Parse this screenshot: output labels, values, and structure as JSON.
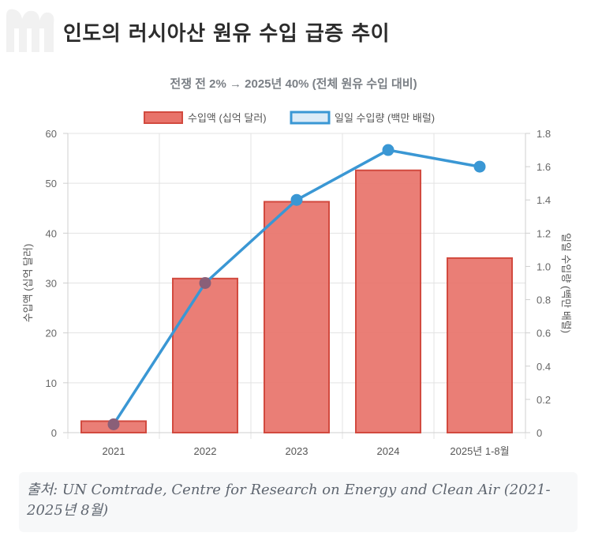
{
  "page": {
    "title": "인도의 러시아산 원유 수입 급증 추이",
    "source": "출처: UN Comtrade, Centre for Research on Energy and Clean Air (2021-2025년 8월)"
  },
  "chart_data": {
    "type": "bar+line",
    "title": "전쟁 전 2% → 2025년 40% (전체 원유 수입 대비)",
    "categories": [
      "2021",
      "2022",
      "2023",
      "2024",
      "2025년 1-8월"
    ],
    "series": [
      {
        "name": "수입액 (십억 달러)",
        "type": "bar",
        "axis": "left",
        "values": [
          2.3,
          30.9,
          46.3,
          52.6,
          35.0
        ],
        "color": "#e8736a",
        "border": "#d24a3f"
      },
      {
        "name": "일일 수입량 (백만 배럴)",
        "type": "line",
        "axis": "right",
        "values": [
          0.05,
          0.9,
          1.4,
          1.7,
          1.6
        ],
        "color": "#3a97d4"
      }
    ],
    "y_left": {
      "label": "수입액 (십억 달러)",
      "min": 0,
      "max": 60,
      "ticks": [
        "0",
        "10",
        "20",
        "30",
        "40",
        "50",
        "60"
      ]
    },
    "y_right": {
      "label": "일일 수입량 (백만 배럴)",
      "min": 0,
      "max": 1.8,
      "ticks": [
        "0",
        "0.2",
        "0.4",
        "0.6",
        "0.8",
        "1.0",
        "1.2",
        "1.4",
        "1.6",
        "1.8"
      ]
    },
    "legend_position": "top",
    "grid": true
  }
}
